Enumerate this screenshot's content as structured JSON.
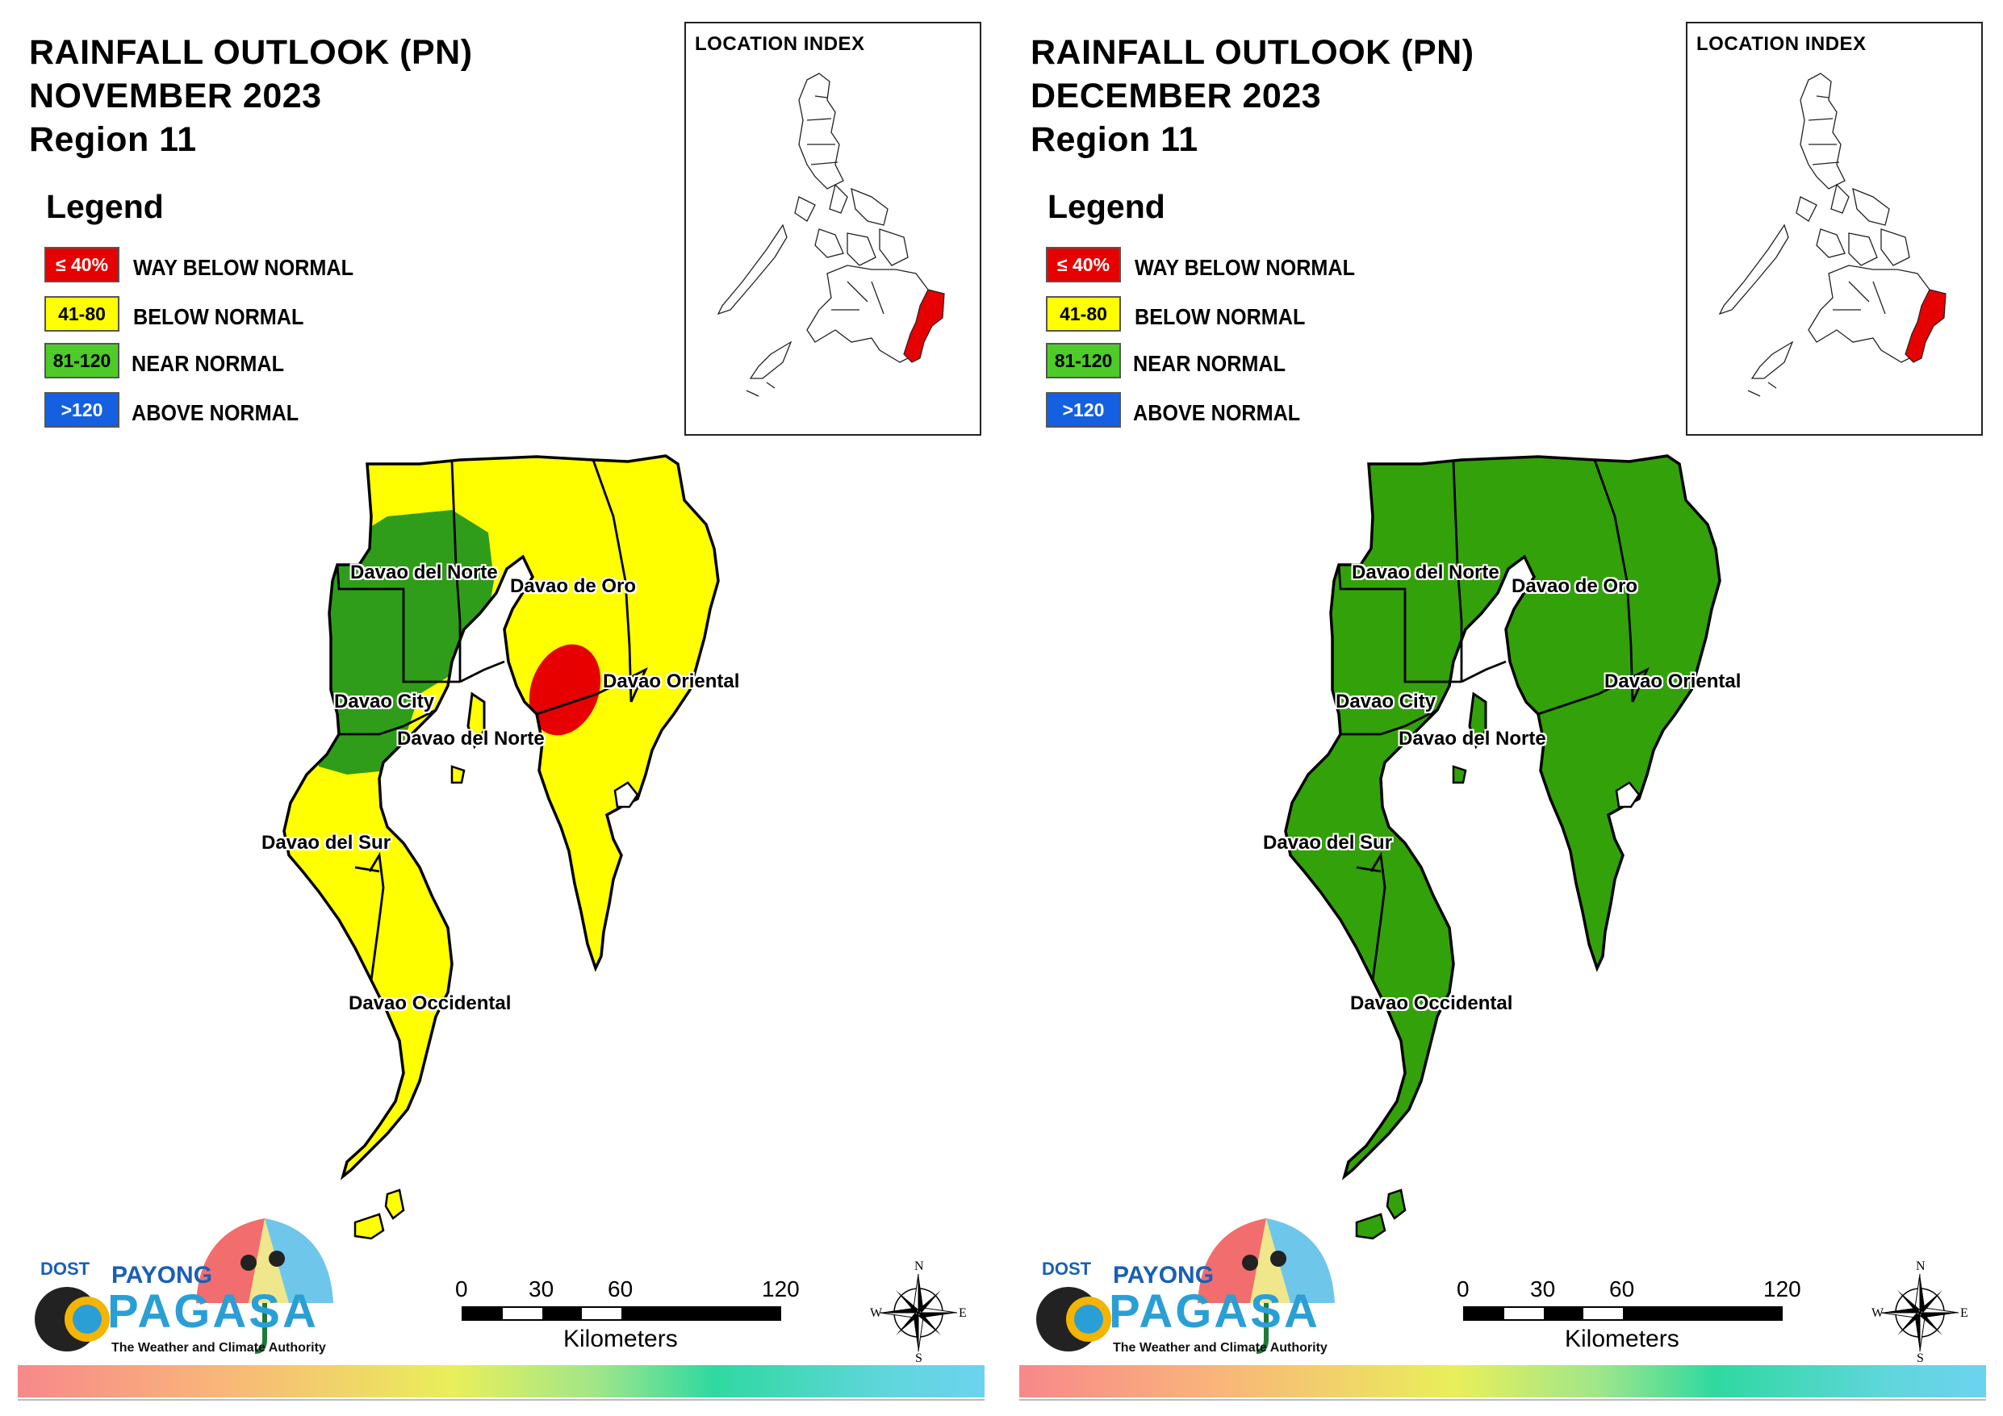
{
  "left": {
    "title_line1": "RAINFALL OUTLOOK (PN)",
    "title_line2": "NOVEMBER 2023",
    "title_line3": "Region 11"
  },
  "right": {
    "title_line1": "RAINFALL OUTLOOK (PN)",
    "title_line2": "DECEMBER 2023",
    "title_line3": "Region 11"
  },
  "legend": {
    "title": "Legend",
    "items": [
      {
        "range": "≤ 40%",
        "label": "WAY BELOW NORMAL",
        "color": "#e60000",
        "text_color": "#ffffff"
      },
      {
        "range": "41-80",
        "label": "BELOW NORMAL",
        "color": "#ffff00",
        "text_color": "#000000"
      },
      {
        "range": "81-120",
        "label": "NEAR NORMAL",
        "color": "#4ecb28",
        "text_color": "#000000"
      },
      {
        "range": ">120",
        "label": "ABOVE NORMAL",
        "color": "#1560e0",
        "text_color": "#ffffff"
      }
    ]
  },
  "location_index": {
    "label": "LOCATION INDEX",
    "highlight_color": "#e60000"
  },
  "places": {
    "davao_del_norte_top": "Davao del Norte",
    "davao_de_oro": "Davao de Oro",
    "davao_oriental": "Davao Oriental",
    "davao_city": "Davao City",
    "davao_del_norte_island": "Davao del Norte",
    "davao_del_sur": "Davao del Sur",
    "davao_occidental": "Davao Occidental"
  },
  "fill_colors": {
    "november_base": "#ffff00",
    "november_green_zone": "#2f9d1a",
    "november_red_zone": "#e60000",
    "december_base": "#33a10a"
  },
  "scale": {
    "ticks": [
      "0",
      "30",
      "60",
      "120"
    ],
    "unit": "Kilometers"
  },
  "compass": {
    "n": "N",
    "e": "E",
    "s": "S",
    "w": "W"
  },
  "logo": {
    "dost": "DOST",
    "payong": "PAYONG",
    "pagasa": "PAGASA",
    "tagline": "The Weather and Climate Authority"
  }
}
